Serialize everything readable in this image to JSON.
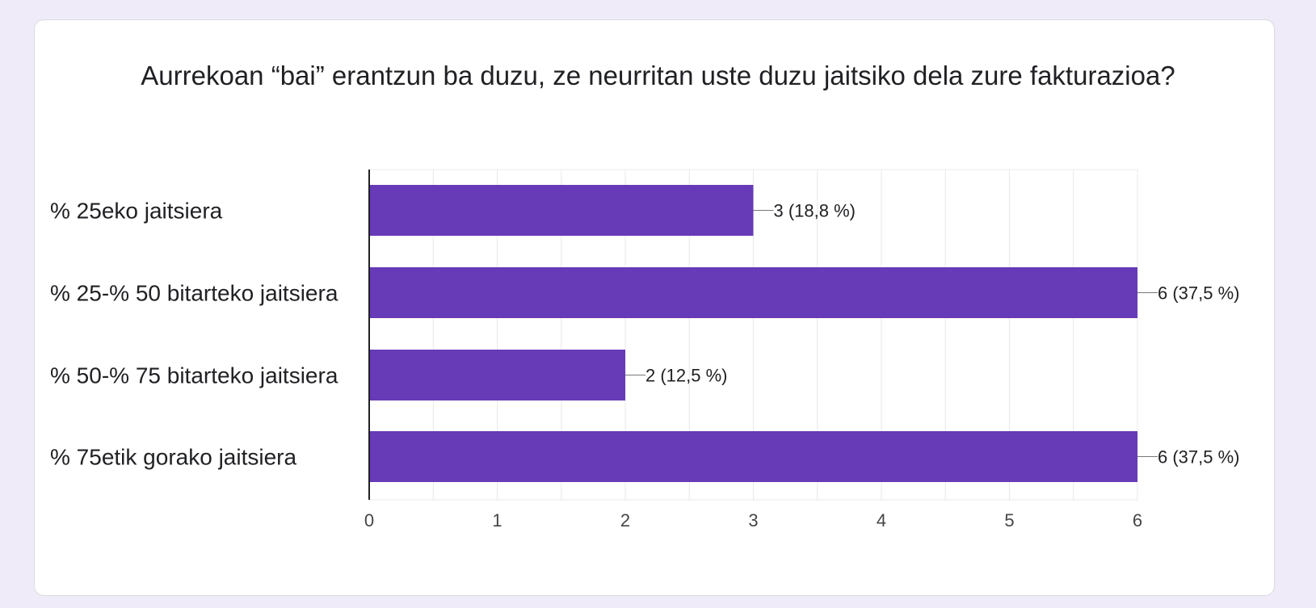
{
  "title": "Aurrekoan “bai” erantzun ba duzu, ze neurritan uste duzu jaitsiko dela zure fakturazioa?",
  "colors": {
    "bar": "#673ab7",
    "grid": "#e9e9e9",
    "axis": "#202124",
    "page_background": "#f0ebf8",
    "card_background": "#ffffff"
  },
  "chart_data": {
    "type": "bar",
    "orientation": "horizontal",
    "title": "Aurrekoan “bai” erantzun ba duzu, ze neurritan uste duzu jaitsiko dela zure fakturazioa?",
    "xlabel": "",
    "ylabel": "",
    "categories": [
      "% 25eko jaitsiera",
      "% 25-% 50 bitarteko jaitsiera",
      "% 50-% 75 bitarteko jaitsiera",
      "% 75etik gorako jaitsiera"
    ],
    "values": [
      3,
      6,
      2,
      6
    ],
    "data_labels": [
      "3 (18,8 %)",
      "6 (37,5 %)",
      "2 (12,5 %)",
      "6 (37,5 %)"
    ],
    "xlim": [
      0,
      6
    ],
    "x_ticks": [
      "0",
      "1",
      "2",
      "3",
      "4",
      "5",
      "6"
    ],
    "grid": true,
    "legend": "none"
  }
}
